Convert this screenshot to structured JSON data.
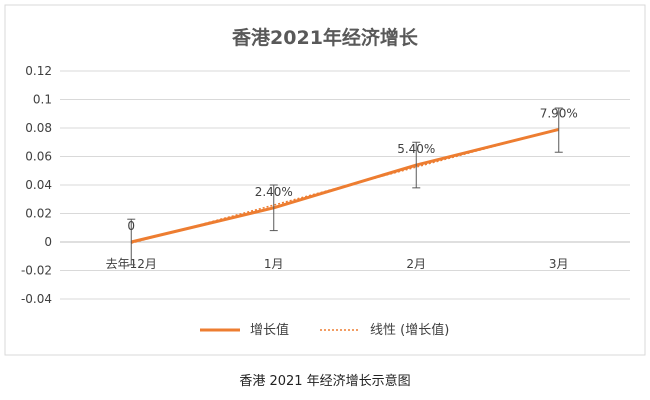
{
  "chart_data": {
    "type": "line",
    "title": "香港2021年经济增长",
    "categories": [
      "去年12月",
      "1月",
      "2月",
      "3月"
    ],
    "series": [
      {
        "name": "增长值",
        "values": [
          0,
          0.024,
          0.054,
          0.079
        ],
        "data_labels": [
          "0",
          "2.40%",
          "5.40%",
          "7.90%"
        ],
        "color": "#ED7D31",
        "error_bars": {
          "upper": [
            0.016,
            0.04,
            0.07,
            0.094
          ],
          "lower": [
            -0.016,
            0.008,
            0.038,
            0.063
          ]
        }
      },
      {
        "name": "线性 (增长值)",
        "kind": "linear-trendline",
        "color": "#ED7D31",
        "dashed": true
      }
    ],
    "y_ticks": [
      "0.12",
      "0.1",
      "0.08",
      "0.06",
      "0.04",
      "0.02",
      "0",
      "-0.02",
      "-0.04"
    ],
    "ylim": [
      -0.04,
      0.12
    ],
    "grid": true,
    "legend_position": "bottom",
    "xlabel": "",
    "ylabel": ""
  },
  "caption": "香港 2021 年经济增长示意图"
}
